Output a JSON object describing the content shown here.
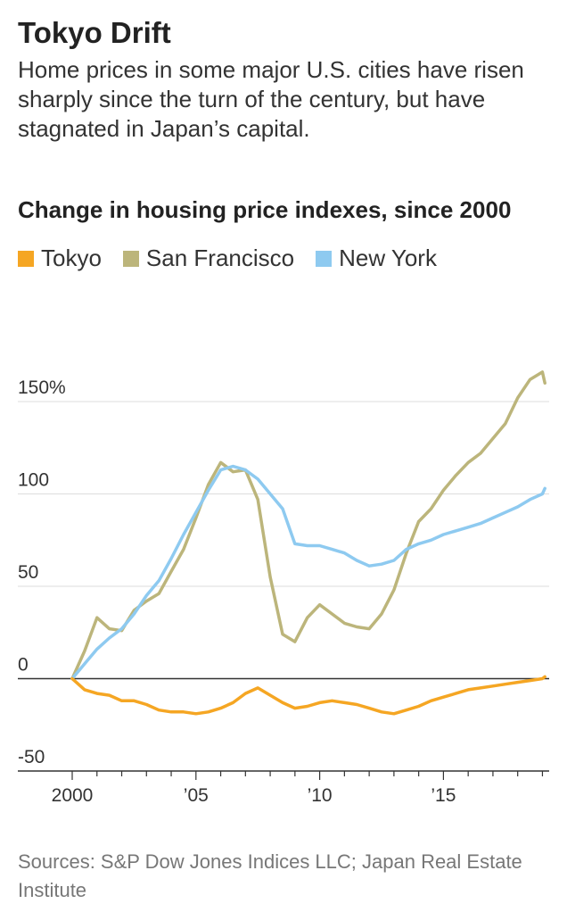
{
  "header": {
    "title": "Tokyo Drift",
    "subtitle": "Home prices in some major U.S. cities have risen sharply since the turn of the century, but have stagnated in Japan’s capital."
  },
  "footer": {
    "source": "Sources: S&P Dow Jones Indices LLC; Japan Real Estate Institute"
  },
  "colors": {
    "tokyo": "#f5a623",
    "san_francisco": "#bcb57b",
    "new_york": "#8ecaf0",
    "grid": "#dddddd",
    "zero": "#333333"
  },
  "chart_data": {
    "type": "line",
    "title": "Change in housing price indexes, since 2000",
    "xlabel": "",
    "ylabel": "",
    "xlim": [
      2000,
      2019.2
    ],
    "ylim": [
      -50,
      150
    ],
    "y_ticks": [
      {
        "value": 150,
        "label": "150%"
      },
      {
        "value": 100,
        "label": "100"
      },
      {
        "value": 50,
        "label": "50"
      },
      {
        "value": 0,
        "label": "0"
      },
      {
        "value": -50,
        "label": "-50"
      }
    ],
    "x_ticks": [
      {
        "value": 2000,
        "label": "2000"
      },
      {
        "value": 2005,
        "label": "’05"
      },
      {
        "value": 2010,
        "label": "’10"
      },
      {
        "value": 2015,
        "label": "’15"
      }
    ],
    "series": [
      {
        "name": "Tokyo",
        "key": "tokyo",
        "x": [
          2000,
          2000.5,
          2001,
          2001.5,
          2002,
          2002.5,
          2003,
          2003.5,
          2004,
          2004.5,
          2005,
          2005.5,
          2006,
          2006.5,
          2007,
          2007.5,
          2008,
          2008.5,
          2009,
          2009.5,
          2010,
          2010.5,
          2011,
          2011.5,
          2012,
          2012.5,
          2013,
          2013.5,
          2014,
          2014.5,
          2015,
          2015.5,
          2016,
          2016.5,
          2017,
          2017.5,
          2018,
          2018.5,
          2019,
          2019.1
        ],
        "values": [
          0,
          -6,
          -8,
          -9,
          -12,
          -12,
          -14,
          -17,
          -18,
          -18,
          -19,
          -18,
          -16,
          -13,
          -8,
          -5,
          -9,
          -13,
          -16,
          -15,
          -13,
          -12,
          -13,
          -14,
          -16,
          -18,
          -19,
          -17,
          -15,
          -12,
          -10,
          -8,
          -6,
          -5,
          -4,
          -3,
          -2,
          -1,
          0,
          1
        ]
      },
      {
        "name": "San Francisco",
        "key": "san_francisco",
        "x": [
          2000,
          2000.5,
          2001,
          2001.5,
          2002,
          2002.5,
          2003,
          2003.5,
          2004,
          2004.5,
          2005,
          2005.5,
          2006,
          2006.5,
          2007,
          2007.5,
          2008,
          2008.5,
          2009,
          2009.5,
          2010,
          2010.5,
          2011,
          2011.5,
          2012,
          2012.5,
          2013,
          2013.5,
          2014,
          2014.5,
          2015,
          2015.5,
          2016,
          2016.5,
          2017,
          2017.5,
          2018,
          2018.5,
          2019,
          2019.1
        ],
        "values": [
          0,
          15,
          33,
          27,
          26,
          37,
          42,
          46,
          58,
          70,
          87,
          105,
          117,
          112,
          113,
          97,
          55,
          24,
          20,
          33,
          40,
          35,
          30,
          28,
          27,
          35,
          48,
          68,
          85,
          92,
          102,
          110,
          117,
          122,
          130,
          138,
          152,
          162,
          166,
          160
        ]
      },
      {
        "name": "New York",
        "key": "new_york",
        "x": [
          2000,
          2000.5,
          2001,
          2001.5,
          2002,
          2002.5,
          2003,
          2003.5,
          2004,
          2004.5,
          2005,
          2005.5,
          2006,
          2006.5,
          2007,
          2007.5,
          2008,
          2008.5,
          2009,
          2009.5,
          2010,
          2010.5,
          2011,
          2011.5,
          2012,
          2012.5,
          2013,
          2013.5,
          2014,
          2014.5,
          2015,
          2015.5,
          2016,
          2016.5,
          2017,
          2017.5,
          2018,
          2018.5,
          2019,
          2019.1
        ],
        "values": [
          0,
          8,
          16,
          22,
          27,
          35,
          45,
          53,
          65,
          78,
          90,
          102,
          113,
          115,
          113,
          108,
          100,
          92,
          73,
          72,
          72,
          70,
          68,
          64,
          61,
          62,
          64,
          70,
          73,
          75,
          78,
          80,
          82,
          84,
          87,
          90,
          93,
          97,
          100,
          103
        ]
      }
    ]
  }
}
